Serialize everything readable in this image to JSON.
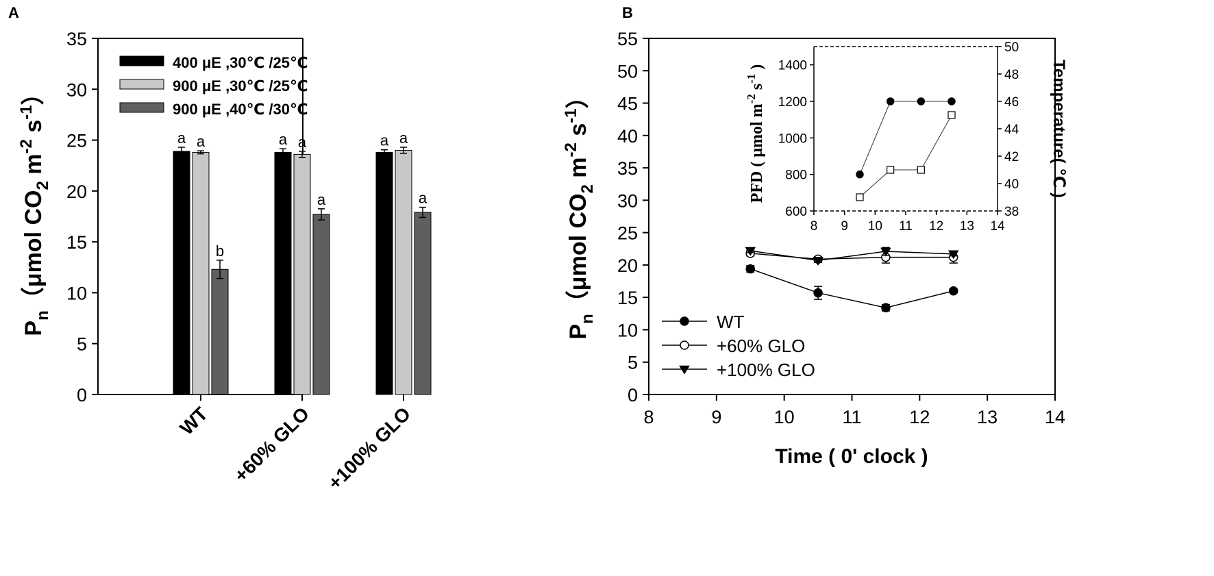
{
  "panels": {
    "a_label": "A",
    "b_label": "B"
  },
  "chart_data": [
    {
      "type": "bar",
      "panel": "A",
      "ylabel_main": "P",
      "ylabel_sub": "n",
      "ylabel_rest": "（μmol CO",
      "ylabel_co2_sub": "2",
      "ylabel_m": " m",
      "ylabel_m_exp": "-2",
      "ylabel_s": " s",
      "ylabel_s_exp": "-1",
      "ylabel_close": "）",
      "ylim": [
        0,
        35
      ],
      "yticks": [
        0,
        5,
        10,
        15,
        20,
        25,
        30,
        35
      ],
      "categories": [
        "WT",
        "+60% GLO",
        "+100% GLO"
      ],
      "series": [
        {
          "name": "400 μE ,30℃ /25℃",
          "color": "#000000",
          "values": [
            23.9,
            23.8,
            23.8
          ],
          "errors": [
            0.4,
            0.35,
            0.25
          ],
          "letters": [
            "a",
            "a",
            "a"
          ]
        },
        {
          "name": "900 μE ,30℃ /25℃",
          "color": "#c8c8c8",
          "values": [
            23.8,
            23.6,
            24.0
          ],
          "errors": [
            0.15,
            0.3,
            0.3
          ],
          "letters": [
            "a",
            "a",
            "a"
          ]
        },
        {
          "name": "900 μE ,40℃ /30℃",
          "color": "#5f5f5f",
          "values": [
            12.3,
            17.7,
            17.9
          ],
          "errors": [
            0.9,
            0.55,
            0.5
          ],
          "letters": [
            "b",
            "a",
            "a"
          ]
        }
      ]
    },
    {
      "type": "line",
      "panel": "B",
      "xlabel": "Time ( 0' clock )",
      "ylabel_main": "P",
      "ylabel_sub": "n",
      "ylabel_rest": "（μmol CO",
      "ylabel_co2_sub": "2",
      "ylabel_m": " m",
      "ylabel_m_exp": "-2",
      "ylabel_s": " s",
      "ylabel_s_exp": "-1",
      "ylabel_close": "）",
      "xlim": [
        8,
        14
      ],
      "ylim": [
        0,
        55
      ],
      "xticks": [
        8,
        9,
        10,
        11,
        12,
        13,
        14
      ],
      "yticks": [
        0,
        5,
        10,
        15,
        20,
        25,
        30,
        35,
        40,
        45,
        50,
        55
      ],
      "x": [
        9.5,
        10.5,
        11.5,
        12.5
      ],
      "series": [
        {
          "name": "WT",
          "marker": "filled-circle",
          "values": [
            19.4,
            15.7,
            13.4,
            16.0
          ],
          "errors": [
            0.5,
            1.0,
            0.5,
            0.3
          ]
        },
        {
          "name": "+60% GLO",
          "marker": "open-circle",
          "values": [
            21.8,
            20.9,
            21.2,
            21.2
          ],
          "errors": [
            0.4,
            0.4,
            0.9,
            0.9
          ]
        },
        {
          "name": "+100% GLO",
          "marker": "filled-triangle-down",
          "values": [
            22.2,
            20.7,
            22.1,
            21.7
          ],
          "errors": [
            0.3,
            0.3,
            0.6,
            0.3
          ]
        }
      ]
    },
    {
      "type": "line",
      "panel": "B-inset",
      "ylabel_left": "PFD ( μmol m",
      "ylabel_left_exp1": "-2",
      "ylabel_left_mid": " s",
      "ylabel_left_exp2": "-1",
      "ylabel_left_close": " )",
      "ylabel_right": "Temperature( ℃ )",
      "xlim": [
        8,
        14
      ],
      "ylim_left": [
        600,
        1500
      ],
      "ylim_right": [
        38,
        50
      ],
      "xticks": [
        8,
        9,
        10,
        11,
        12,
        13,
        14
      ],
      "yticks_left": [
        600,
        800,
        1000,
        1200,
        1400
      ],
      "yticks_right": [
        38,
        40,
        42,
        44,
        46,
        48,
        50
      ],
      "x": [
        9.5,
        10.5,
        11.5,
        12.5
      ],
      "series": [
        {
          "name": "PFD",
          "axis": "left",
          "marker": "filled-circle",
          "values": [
            800,
            1200,
            1200,
            1200
          ]
        },
        {
          "name": "temperature",
          "axis": "right",
          "marker": "open-square",
          "values": [
            39,
            41,
            41,
            45
          ]
        }
      ]
    }
  ]
}
